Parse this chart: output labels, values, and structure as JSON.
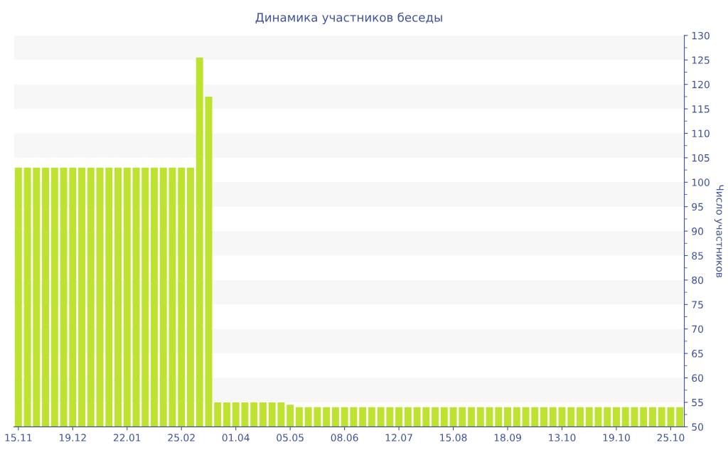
{
  "chart_data": {
    "type": "bar",
    "title": "Динамика участников беседы",
    "ylabel": "Число участников",
    "categories": [
      "15.11",
      null,
      null,
      null,
      null,
      null,
      "19.12",
      null,
      null,
      null,
      null,
      null,
      "22.01",
      null,
      null,
      null,
      null,
      null,
      "25.02",
      null,
      null,
      null,
      null,
      null,
      "01.04",
      null,
      null,
      null,
      null,
      null,
      "05.05",
      null,
      null,
      null,
      null,
      null,
      "08.06",
      null,
      null,
      null,
      null,
      null,
      "12.07",
      null,
      null,
      null,
      null,
      null,
      "15.08",
      null,
      null,
      null,
      null,
      null,
      "18.09",
      null,
      null,
      null,
      null,
      null,
      "13.10",
      null,
      null,
      null,
      null,
      null,
      "19.10",
      null,
      null,
      null,
      null,
      null,
      "25.10",
      null
    ],
    "values": [
      103,
      103,
      103,
      103,
      103,
      103,
      103,
      103,
      103,
      103,
      103,
      103,
      103,
      103,
      103,
      103,
      103,
      103,
      103,
      103,
      125.5,
      117.5,
      55,
      55,
      55,
      55,
      55,
      55,
      55,
      55,
      54.5,
      54,
      54,
      54,
      54,
      54,
      54,
      54,
      54,
      54,
      54,
      54,
      54,
      54,
      54,
      54,
      54,
      54,
      54,
      54,
      54,
      54,
      54,
      54,
      54,
      54,
      54,
      54,
      54,
      54,
      54,
      54,
      54,
      54,
      54,
      54,
      54,
      54,
      54,
      54,
      54,
      54,
      54,
      54
    ],
    "color": "#bde22f",
    "ylim": [
      50,
      130
    ],
    "yticks": [
      50,
      55,
      60,
      65,
      70,
      75,
      80,
      85,
      90,
      95,
      100,
      105,
      110,
      115,
      120,
      125,
      130
    ],
    "legend": false
  }
}
